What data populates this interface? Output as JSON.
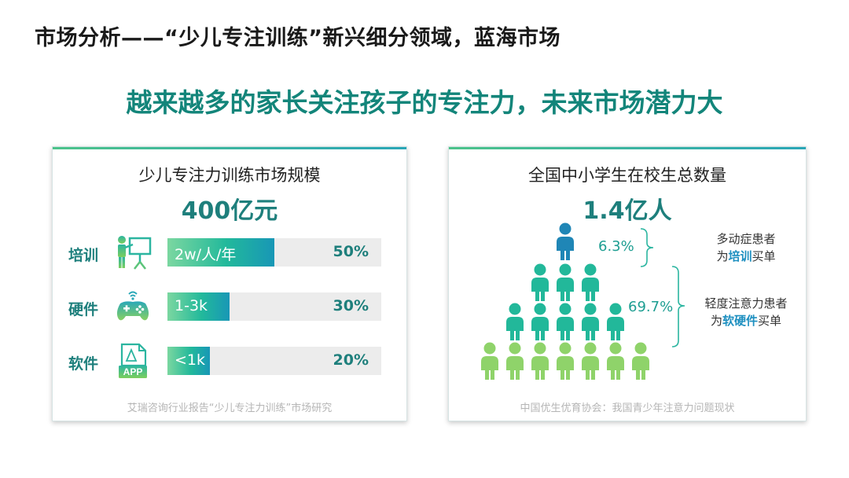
{
  "header": {
    "title": "市场分析——“少儿专注训练”新兴细分领域，蓝海市场",
    "subtitle": "越来越多的家长关注孩子的专注力，未来市场潜力大"
  },
  "left_card": {
    "title": "少儿专注力训练市场规模",
    "big_number": "400亿元",
    "rows": [
      {
        "label": "培训",
        "icon": "training-presentation-icon",
        "bar_text": "2w/人/年",
        "pct": "50%",
        "fill_fraction": 0.5
      },
      {
        "label": "硬件",
        "icon": "game-controller-icon",
        "bar_text": "1-3k",
        "pct": "30%",
        "fill_fraction": 0.29
      },
      {
        "label": "软件",
        "icon": "app-file-icon",
        "bar_text": "<1k",
        "pct": "20%",
        "fill_fraction": 0.2
      }
    ],
    "icon_app_text": "APP",
    "source": "艾瑞咨询行业报告“少儿专注力训练”市场研究"
  },
  "right_card": {
    "title": "全国中小学生在校生总数量",
    "big_number": "1.4亿人",
    "pct_top": "6.3%",
    "pct_mid": "69.7%",
    "note_top": {
      "line1": "多动症患者",
      "line2_pre": "为",
      "line2_hl": "培训",
      "line2_post": "买单"
    },
    "note_mid": {
      "line1": "轻度注意力患者",
      "line2_pre": "为",
      "line2_hl": "软硬件",
      "line2_post": "买单"
    },
    "pyramid_rows": [
      1,
      3,
      5,
      7
    ],
    "source": "中国优生优育协会：我国青少年注意力问题现状"
  },
  "colors": {
    "teal": "#1e7f7c",
    "person_blue": "#1f86b6",
    "person_teal": "#22b89a",
    "person_green": "#8fd36a",
    "highlight": "#1d8fc0"
  }
}
